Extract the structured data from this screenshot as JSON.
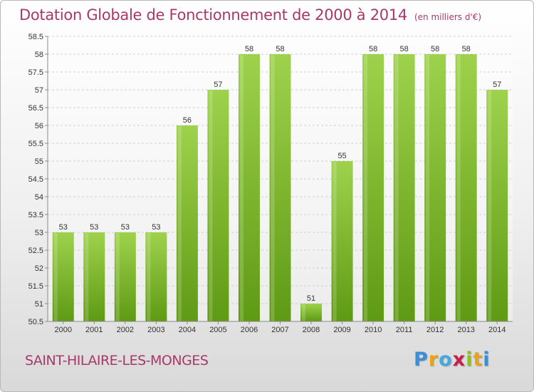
{
  "header": {
    "title": "Dotation Globale de Fonctionnement de 2000 à 2014",
    "unit_note": "(en milliers d'€)"
  },
  "footer": {
    "commune": "SAINT-HILAIRE-LES-MONGES",
    "logo_letters": [
      "P",
      "r",
      "o",
      "x",
      "i",
      "t",
      "i"
    ],
    "logo_colors": [
      "#3c8fd6",
      "#e8a31b",
      "#45a9e0",
      "#c81e4e",
      "#8cbf26",
      "#e8a31b",
      "#3c8fd6"
    ]
  },
  "colors": {
    "title": "#a8386a",
    "bar_light": "#9ed24c",
    "bar_dark": "#5f9a14",
    "grid": "#cfcfcf",
    "axis": "#8a8a8a",
    "text": "#333333"
  },
  "chart_data": {
    "type": "bar",
    "title": "Dotation Globale de Fonctionnement de 2000 à 2014",
    "subtitle": "(en milliers d'€)",
    "xlabel": "",
    "ylabel": "",
    "categories": [
      "2000",
      "2001",
      "2002",
      "2003",
      "2004",
      "2005",
      "2006",
      "2007",
      "2008",
      "2009",
      "2010",
      "2011",
      "2012",
      "2013",
      "2014"
    ],
    "values": [
      53,
      53,
      53,
      53,
      56,
      57,
      58,
      58,
      51,
      55,
      58,
      58,
      58,
      58,
      57
    ],
    "ylim": [
      50.5,
      58.5
    ],
    "yticks": [
      50.5,
      51,
      51.5,
      52,
      52.5,
      53,
      53.5,
      54,
      54.5,
      55,
      55.5,
      56,
      56.5,
      57,
      57.5,
      58,
      58.5
    ],
    "ytick_labels": [
      "50.5",
      "51",
      "51.5",
      "52",
      "52.5",
      "53",
      "53.5",
      "54",
      "54.5",
      "55",
      "55.5",
      "56",
      "56.5",
      "57",
      "57.5",
      "58",
      "58.5"
    ],
    "grid": true,
    "legend": "none"
  }
}
